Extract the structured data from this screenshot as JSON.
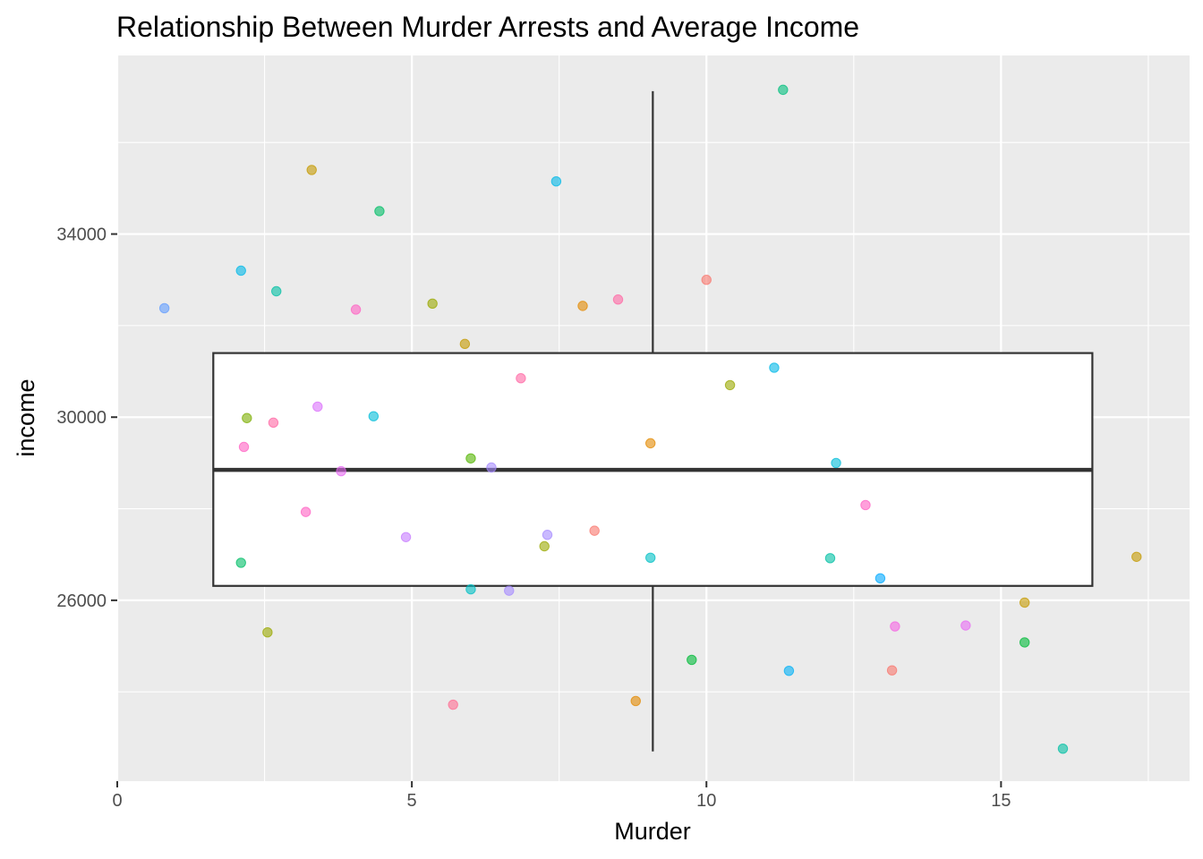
{
  "chart_data": {
    "type": "scatter",
    "title": "Relationship Between Murder Arrests and Average Income",
    "xlabel": "Murder",
    "ylabel": "income",
    "xlim": [
      0,
      18.2
    ],
    "ylim": [
      22050,
      37900
    ],
    "x_ticks": [
      0,
      5,
      10,
      15
    ],
    "x_tick_labels": [
      "0",
      "5",
      "10",
      "15"
    ],
    "y_ticks": [
      26000,
      30000,
      34000
    ],
    "y_tick_labels": [
      "26000",
      "30000",
      "34000"
    ],
    "grid": true,
    "legend": "none",
    "colors": {
      "panel_background": "#ebebeb",
      "grid_line": "#ffffff",
      "box_stroke": "#333333",
      "box_fill": "#ffffff"
    },
    "boxplot": {
      "x_center": 9.09,
      "x_left": 1.63,
      "x_right": 16.55,
      "whisker_low": 22700,
      "q1": 26315,
      "median": 28850,
      "q3": 31400,
      "whisker_high": 37120
    },
    "points": [
      {
        "x": 0.8,
        "y": 32380,
        "color": "#619CFF"
      },
      {
        "x": 2.1,
        "y": 33200,
        "color": "#00B8E7"
      },
      {
        "x": 2.7,
        "y": 32750,
        "color": "#00BFA4"
      },
      {
        "x": 3.3,
        "y": 35400,
        "color": "#C49A00"
      },
      {
        "x": 4.45,
        "y": 34500,
        "color": "#00BE67"
      },
      {
        "x": 4.05,
        "y": 32350,
        "color": "#FF61C3"
      },
      {
        "x": 5.35,
        "y": 32480,
        "color": "#99A800"
      },
      {
        "x": 7.45,
        "y": 35150,
        "color": "#00B8E7"
      },
      {
        "x": 5.9,
        "y": 31600,
        "color": "#C49A00"
      },
      {
        "x": 7.9,
        "y": 32430,
        "color": "#E38900"
      },
      {
        "x": 8.5,
        "y": 32570,
        "color": "#FF67A4"
      },
      {
        "x": 10.0,
        "y": 33000,
        "color": "#F8766D"
      },
      {
        "x": 11.3,
        "y": 37150,
        "color": "#00BF7D"
      },
      {
        "x": 6.85,
        "y": 30850,
        "color": "#FF67A4"
      },
      {
        "x": 10.4,
        "y": 30700,
        "color": "#99A800"
      },
      {
        "x": 11.15,
        "y": 31080,
        "color": "#00B8E7"
      },
      {
        "x": 2.2,
        "y": 29980,
        "color": "#7CAE00"
      },
      {
        "x": 2.65,
        "y": 29880,
        "color": "#FF67A4"
      },
      {
        "x": 3.4,
        "y": 30230,
        "color": "#DB72FB"
      },
      {
        "x": 4.35,
        "y": 30020,
        "color": "#00BCD8"
      },
      {
        "x": 2.15,
        "y": 29350,
        "color": "#FF61C3"
      },
      {
        "x": 6.0,
        "y": 29100,
        "color": "#53B400"
      },
      {
        "x": 6.35,
        "y": 28900,
        "color": "#A58AFF"
      },
      {
        "x": 3.8,
        "y": 28820,
        "color": "#E76BF3"
      },
      {
        "x": 9.05,
        "y": 29430,
        "color": "#E38900"
      },
      {
        "x": 12.2,
        "y": 29000,
        "color": "#00BCD8"
      },
      {
        "x": 3.2,
        "y": 27930,
        "color": "#FF61C3"
      },
      {
        "x": 12.7,
        "y": 28080,
        "color": "#FF61C3"
      },
      {
        "x": 4.9,
        "y": 27380,
        "color": "#C77CFF"
      },
      {
        "x": 7.3,
        "y": 27430,
        "color": "#A58AFF"
      },
      {
        "x": 7.25,
        "y": 27180,
        "color": "#99A800"
      },
      {
        "x": 8.1,
        "y": 27520,
        "color": "#F8766D"
      },
      {
        "x": 2.1,
        "y": 26820,
        "color": "#00BE67"
      },
      {
        "x": 9.05,
        "y": 26930,
        "color": "#00BFC4"
      },
      {
        "x": 12.1,
        "y": 26920,
        "color": "#00BFA4"
      },
      {
        "x": 12.95,
        "y": 26480,
        "color": "#00A9FF"
      },
      {
        "x": 6.0,
        "y": 26240,
        "color": "#00BFC4"
      },
      {
        "x": 6.65,
        "y": 26210,
        "color": "#A58AFF"
      },
      {
        "x": 17.3,
        "y": 26950,
        "color": "#C49A00"
      },
      {
        "x": 15.4,
        "y": 25950,
        "color": "#C49A00"
      },
      {
        "x": 2.55,
        "y": 25300,
        "color": "#99A800"
      },
      {
        "x": 13.2,
        "y": 25430,
        "color": "#F564E3"
      },
      {
        "x": 14.4,
        "y": 25450,
        "color": "#E76BF3"
      },
      {
        "x": 15.4,
        "y": 25080,
        "color": "#00BA38"
      },
      {
        "x": 9.75,
        "y": 24700,
        "color": "#00BA38"
      },
      {
        "x": 11.4,
        "y": 24460,
        "color": "#00B0F6"
      },
      {
        "x": 13.15,
        "y": 24470,
        "color": "#F8766D"
      },
      {
        "x": 5.7,
        "y": 23720,
        "color": "#FF6C91"
      },
      {
        "x": 8.8,
        "y": 23800,
        "color": "#E38900"
      },
      {
        "x": 16.05,
        "y": 22760,
        "color": "#00BFA4"
      }
    ]
  }
}
